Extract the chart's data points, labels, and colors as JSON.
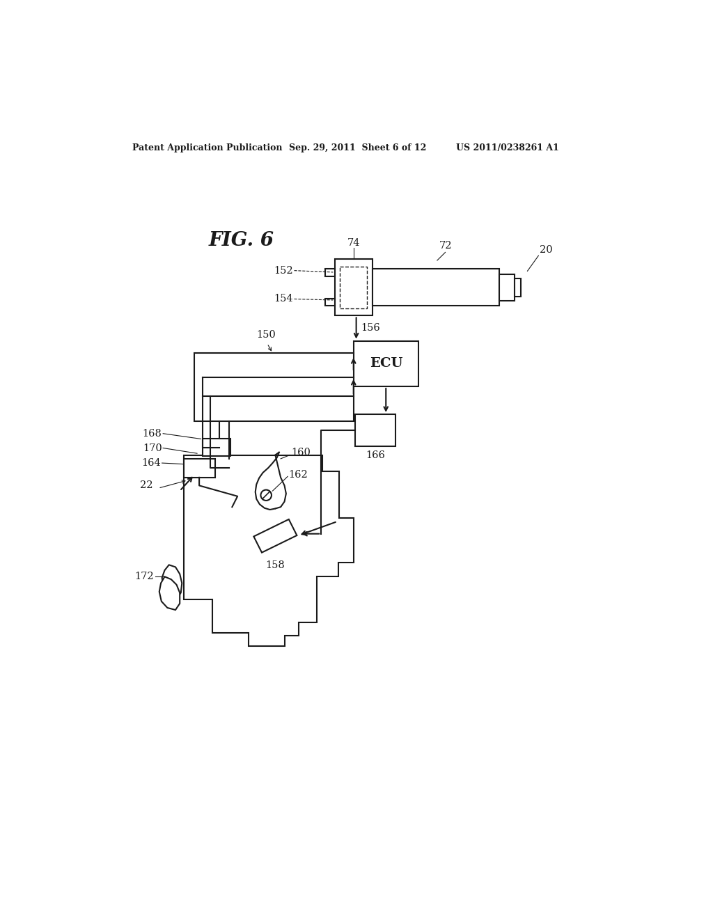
{
  "title": "FIG. 6",
  "header_left": "Patent Application Publication",
  "header_center": "Sep. 29, 2011  Sheet 6 of 12",
  "header_right": "US 2011/0238261 A1",
  "background_color": "#ffffff",
  "line_color": "#1a1a1a",
  "labels": {
    "fig": "FIG. 6",
    "20": "20",
    "22": "22",
    "72": "72",
    "74": "74",
    "150": "150",
    "152": "152",
    "154": "154",
    "156": "156",
    "158": "158",
    "160": "160",
    "162": "162",
    "164": "164",
    "166": "166",
    "168": "168",
    "170": "170",
    "172": "172",
    "ECU": "ECU"
  }
}
